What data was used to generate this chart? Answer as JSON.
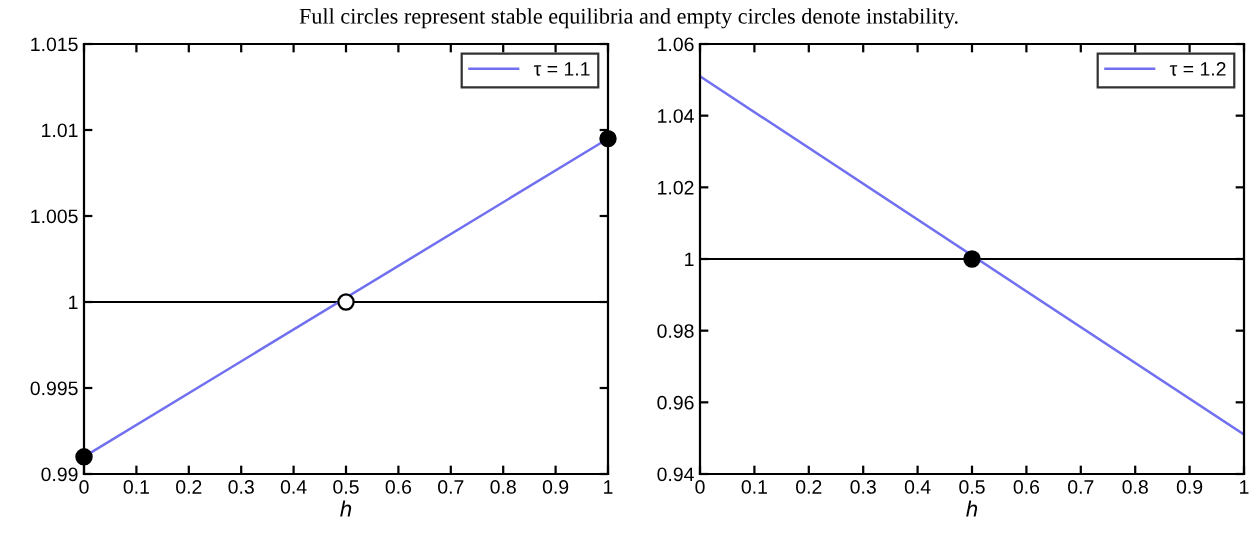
{
  "chart_data": [
    {
      "type": "line",
      "xlabel": "h",
      "annotations": [
        "Full circles represent stable equilibria and empty circles denote instability."
      ],
      "series": [
        {
          "name": "τ = 1.1",
          "color": "#7070f0",
          "x": [
            0,
            1
          ],
          "values": [
            0.991,
            1.0095
          ]
        },
        {
          "type": "scatter",
          "marker": "circle",
          "color": "#000000",
          "x": [
            0,
            1
          ],
          "values": [
            0.991,
            1.0095
          ]
        },
        {
          "type": "scatter",
          "marker": "circle",
          "color": "#ffffff",
          "x": [
            0.5
          ],
          "values": [
            1
          ]
        }
      ],
      "ref_lines": [
        {
          "axis": "y",
          "value": 1,
          "color": "#000000"
        }
      ],
      "xlim": [
        0,
        1
      ],
      "xticks": [
        0,
        0.1,
        0.2,
        0.3,
        0.4,
        0.5,
        0.6,
        0.7,
        0.8,
        0.9,
        1
      ],
      "ylim": [
        0.99,
        1.015
      ],
      "yticks": [
        0.99,
        0.995,
        1,
        1.005,
        1.01,
        1.015
      ],
      "legend": "top right",
      "grid": false
    },
    {
      "type": "line",
      "xlabel": "h",
      "series": [
        {
          "name": "τ = 1.2",
          "color": "#7070f0",
          "x": [
            0,
            1
          ],
          "values": [
            1.051,
            0.951
          ]
        },
        {
          "type": "scatter",
          "marker": "circle",
          "color": "#000000",
          "x": [
            0.5
          ],
          "values": [
            1
          ]
        }
      ],
      "ref_lines": [
        {
          "axis": "y",
          "value": 1,
          "color": "#000000"
        }
      ],
      "xlim": [
        0,
        1
      ],
      "xticks": [
        0,
        0.1,
        0.2,
        0.3,
        0.4,
        0.5,
        0.6,
        0.7,
        0.8,
        0.9,
        1
      ],
      "ylim": [
        0.94,
        1.06
      ],
      "yticks": [
        0.94,
        0.96,
        0.98,
        1,
        1.02,
        1.04,
        1.06
      ],
      "legend": "top right",
      "grid": false
    }
  ]
}
